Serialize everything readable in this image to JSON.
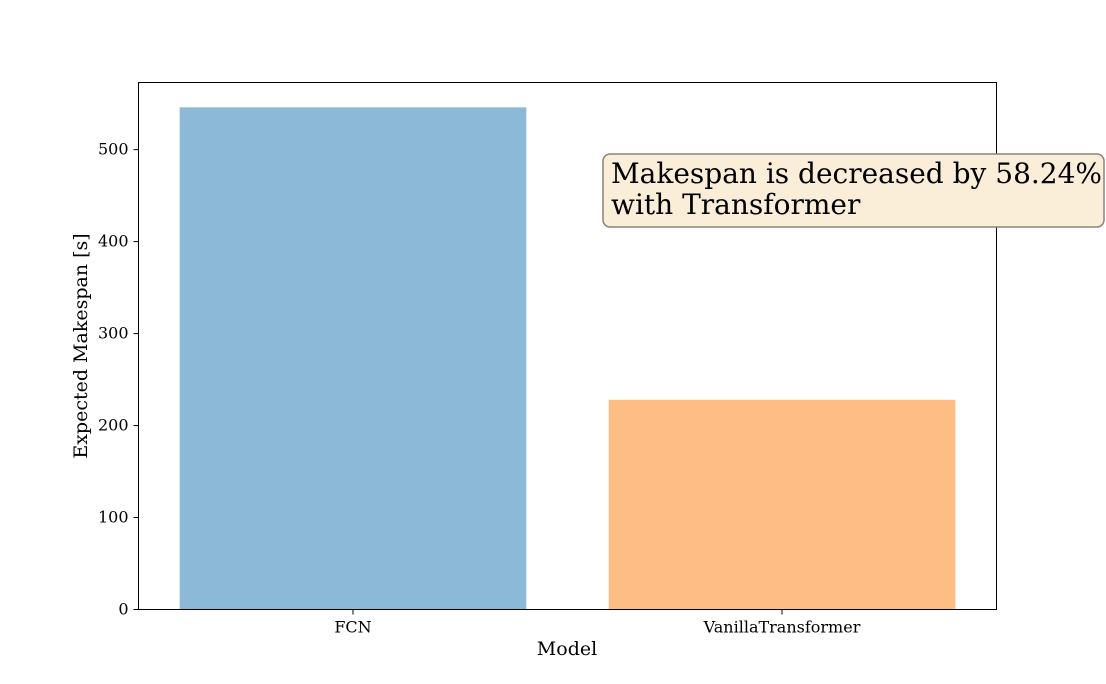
{
  "chart_data": {
    "type": "bar",
    "title": "",
    "xlabel": "Model",
    "ylabel": "Expected Makespan [s]",
    "categories": [
      "FCN",
      "VanillaTransformer"
    ],
    "values": [
      546,
      228
    ],
    "bar_colors": [
      "#8db9d9",
      "#ffbd86"
    ],
    "ylim": [
      0,
      573
    ],
    "yticks": [
      0,
      100,
      200,
      300,
      400,
      500
    ],
    "grid": false,
    "annotation": {
      "lines": [
        "Makespan is decreased by 58.24%",
        "with Transformer"
      ],
      "box_color": "#faeed8",
      "border_color": "#8c8279"
    }
  }
}
